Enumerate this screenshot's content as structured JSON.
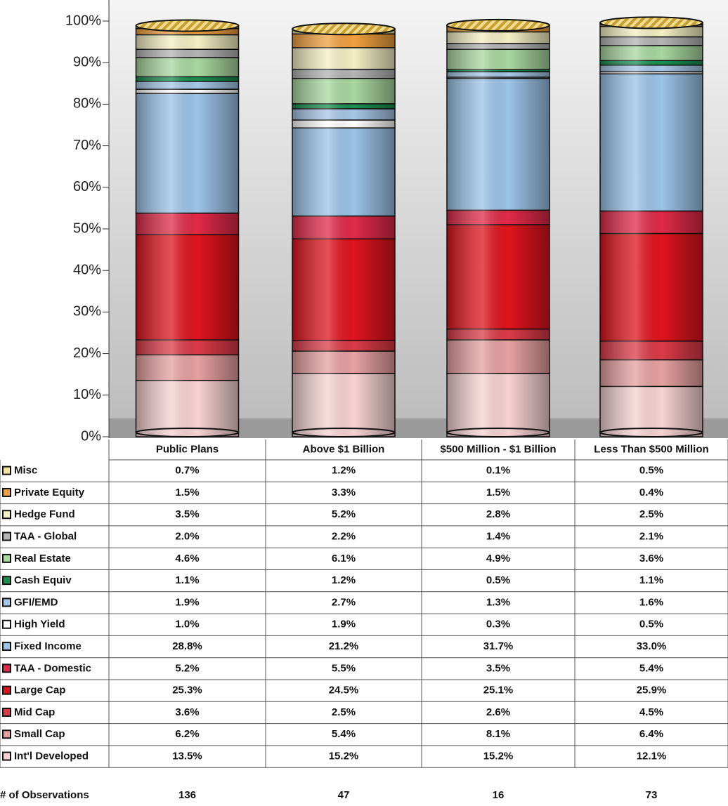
{
  "chart_data": {
    "type": "bar",
    "categories": [
      "Public Plans",
      "Above $1 Billion",
      "$500 Million - $1 Billion",
      "Less Than $500 Million"
    ],
    "series": [
      {
        "name": "Misc",
        "color": "#f3e3a0",
        "values": [
          0.7,
          1.2,
          0.1,
          0.5
        ],
        "value_labels": [
          "0.7%",
          "1.2%",
          "0.1%",
          "0.5%"
        ]
      },
      {
        "name": "Private Equity",
        "color": "#f0a040",
        "values": [
          1.5,
          3.3,
          1.5,
          0.4
        ],
        "value_labels": [
          "1.5%",
          "3.3%",
          "1.5%",
          "0.4%"
        ]
      },
      {
        "name": "Hedge Fund",
        "color": "#f4efc4",
        "values": [
          3.5,
          5.2,
          2.8,
          2.5
        ],
        "value_labels": [
          "3.5%",
          "5.2%",
          "2.8%",
          "2.5%"
        ]
      },
      {
        "name": "TAA - Global",
        "color": "#b4b4b4",
        "values": [
          2.0,
          2.2,
          1.4,
          2.1
        ],
        "value_labels": [
          "2.0%",
          "2.2%",
          "1.4%",
          "2.1%"
        ]
      },
      {
        "name": "Real Estate",
        "color": "#a9d7a0",
        "values": [
          4.6,
          6.1,
          4.9,
          3.6
        ],
        "value_labels": [
          "4.6%",
          "6.1%",
          "4.9%",
          "3.6%"
        ]
      },
      {
        "name": "Cash Equiv",
        "color": "#1a9050",
        "values": [
          1.1,
          1.2,
          0.5,
          1.1
        ],
        "value_labels": [
          "1.1%",
          "1.2%",
          "0.5%",
          "1.1%"
        ]
      },
      {
        "name": "GFI/EMD",
        "color": "#a6c6e6",
        "values": [
          1.9,
          2.7,
          1.3,
          1.6
        ],
        "value_labels": [
          "1.9%",
          "2.7%",
          "1.3%",
          "1.6%"
        ]
      },
      {
        "name": "High Yield",
        "color": "#ffffff",
        "values": [
          1.0,
          1.9,
          0.3,
          0.5
        ],
        "value_labels": [
          "1.0%",
          "1.9%",
          "0.3%",
          "0.5%"
        ]
      },
      {
        "name": "Fixed Income",
        "color": "#9cc3e8",
        "values": [
          28.8,
          21.2,
          31.7,
          33.0
        ],
        "value_labels": [
          "28.8%",
          "21.2%",
          "31.7%",
          "33.0%"
        ]
      },
      {
        "name": "TAA - Domestic",
        "color": "#e02a48",
        "values": [
          5.2,
          5.5,
          3.5,
          5.4
        ],
        "value_labels": [
          "5.2%",
          "5.5%",
          "3.5%",
          "5.4%"
        ]
      },
      {
        "name": "Large Cap",
        "color": "#e0141e",
        "values": [
          25.3,
          24.5,
          25.1,
          25.9
        ],
        "value_labels": [
          "25.3%",
          "24.5%",
          "25.1%",
          "25.9%"
        ]
      },
      {
        "name": "Mid Cap",
        "color": "#dc3a48",
        "values": [
          3.6,
          2.5,
          2.6,
          4.5
        ],
        "value_labels": [
          "3.6%",
          "2.5%",
          "2.6%",
          "4.5%"
        ]
      },
      {
        "name": "Small Cap",
        "color": "#e6a0a0",
        "values": [
          6.2,
          5.4,
          8.1,
          6.4
        ],
        "value_labels": [
          "6.2%",
          "5.4%",
          "8.1%",
          "6.4%"
        ]
      },
      {
        "name": "Int'l Developed",
        "color": "#f7d2d2",
        "values": [
          13.5,
          15.2,
          15.2,
          12.1
        ],
        "value_labels": [
          "13.5%",
          "15.2%",
          "15.2%",
          "12.1%"
        ]
      }
    ],
    "ylim": [
      0,
      100
    ],
    "yticks": [
      {
        "value": 0,
        "label": "0%"
      },
      {
        "value": 10,
        "label": "10%"
      },
      {
        "value": 20,
        "label": "20%"
      },
      {
        "value": 30,
        "label": "30%"
      },
      {
        "value": 40,
        "label": "40%"
      },
      {
        "value": 50,
        "label": "50%"
      },
      {
        "value": 60,
        "label": "60%"
      },
      {
        "value": 70,
        "label": "70%"
      },
      {
        "value": 80,
        "label": "80%"
      },
      {
        "value": 90,
        "label": "90%"
      },
      {
        "value": 100,
        "label": "100%"
      }
    ],
    "observations_label": "# of Observations",
    "observations": [
      136,
      47,
      16,
      73
    ]
  }
}
